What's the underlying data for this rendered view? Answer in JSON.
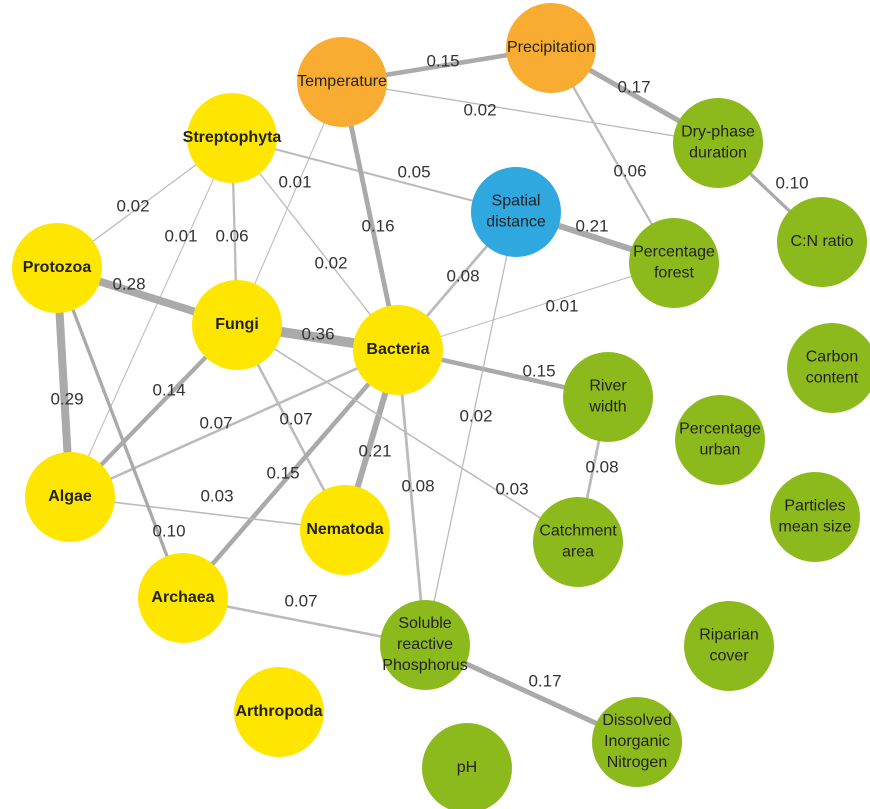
{
  "nodes": [
    {
      "label": [
        "Temperature"
      ],
      "color": "#f8ad32",
      "bold": false
    },
    {
      "label": [
        "Precipitation"
      ],
      "color": "#f8ad32",
      "bold": false
    },
    {
      "label": [
        "Dry-phase",
        "duration"
      ],
      "color": "#8cba1c",
      "bold": false
    },
    {
      "label": [
        "Streptophyta"
      ],
      "color": "#ffe600",
      "bold": true
    },
    {
      "label": [
        "Spatial",
        "distance"
      ],
      "color": "#2fa7df",
      "bold": false
    },
    {
      "label": [
        "C:N ratio"
      ],
      "color": "#8cba1c",
      "bold": false
    },
    {
      "label": [
        "Protozoa"
      ],
      "color": "#ffe600",
      "bold": true
    },
    {
      "label": [
        "Percentage",
        "forest"
      ],
      "color": "#8cba1c",
      "bold": false
    },
    {
      "label": [
        "Fungi"
      ],
      "color": "#ffe600",
      "bold": true
    },
    {
      "label": [
        "Bacteria"
      ],
      "color": "#ffe600",
      "bold": true
    },
    {
      "label": [
        "Carbon",
        "content"
      ],
      "color": "#8cba1c",
      "bold": false
    },
    {
      "label": [
        "River",
        "width"
      ],
      "color": "#8cba1c",
      "bold": false
    },
    {
      "label": [
        "Percentage",
        "urban"
      ],
      "color": "#8cba1c",
      "bold": false
    },
    {
      "label": [
        "Algae"
      ],
      "color": "#ffe600",
      "bold": true
    },
    {
      "label": [
        "Nematoda"
      ],
      "color": "#ffe600",
      "bold": true
    },
    {
      "label": [
        "Particles",
        "mean size"
      ],
      "color": "#8cba1c",
      "bold": false
    },
    {
      "label": [
        "Catchment",
        "area"
      ],
      "color": "#8cba1c",
      "bold": false
    },
    {
      "label": [
        "Archaea"
      ],
      "color": "#ffe600",
      "bold": true
    },
    {
      "label": [
        "Soluble",
        "reactive",
        "Phosphorus"
      ],
      "color": "#8cba1c",
      "bold": false
    },
    {
      "label": [
        "Riparian",
        "cover"
      ],
      "color": "#8cba1c",
      "bold": false
    },
    {
      "label": [
        "Arthropoda"
      ],
      "color": "#ffe600",
      "bold": true
    },
    {
      "label": [
        "Dissolved",
        "Inorganic",
        "Nitrogen"
      ],
      "color": "#8cba1c",
      "bold": false
    },
    {
      "label": [
        "pH"
      ],
      "color": "#8cba1c",
      "bold": false
    }
  ],
  "edges": [
    {
      "source": 0,
      "target": 1,
      "weight": 0.15,
      "label": "0.15"
    },
    {
      "source": 1,
      "target": 2,
      "weight": 0.17,
      "label": "0.17"
    },
    {
      "source": 0,
      "target": 2,
      "weight": 0.02,
      "label": "0.02"
    },
    {
      "source": 2,
      "target": 5,
      "weight": 0.1,
      "label": "0.10"
    },
    {
      "source": 1,
      "target": 7,
      "weight": 0.06,
      "label": "0.06"
    },
    {
      "source": 3,
      "target": 4,
      "weight": 0.05,
      "label": "0.05"
    },
    {
      "source": 4,
      "target": 7,
      "weight": 0.21,
      "label": "0.21"
    },
    {
      "source": 0,
      "target": 9,
      "weight": 0.16,
      "label": "0.16"
    },
    {
      "source": 0,
      "target": 8,
      "weight": 0.01,
      "label": "0.01"
    },
    {
      "source": 3,
      "target": 6,
      "weight": 0.02,
      "label": "0.02"
    },
    {
      "source": 3,
      "target": 13,
      "weight": 0.01,
      "label": "0.01"
    },
    {
      "source": 3,
      "target": 8,
      "weight": 0.06,
      "label": "0.06"
    },
    {
      "source": 3,
      "target": 9,
      "weight": 0.02,
      "label": "0.02"
    },
    {
      "source": 4,
      "target": 9,
      "weight": 0.08,
      "label": "0.08"
    },
    {
      "source": 9,
      "target": 7,
      "weight": 0.01,
      "label": "0.01"
    },
    {
      "source": 6,
      "target": 8,
      "weight": 0.28,
      "label": "0.28"
    },
    {
      "source": 8,
      "target": 9,
      "weight": 0.36,
      "label": "0.36"
    },
    {
      "source": 6,
      "target": 13,
      "weight": 0.29,
      "label": "0.29"
    },
    {
      "source": 8,
      "target": 13,
      "weight": 0.14,
      "label": "0.14"
    },
    {
      "source": 9,
      "target": 13,
      "weight": 0.07,
      "label": "0.07"
    },
    {
      "source": 8,
      "target": 14,
      "weight": 0.07,
      "label": "0.07"
    },
    {
      "source": 9,
      "target": 14,
      "weight": 0.21,
      "label": "0.21"
    },
    {
      "source": 9,
      "target": 17,
      "weight": 0.15,
      "label": "0.15"
    },
    {
      "source": 9,
      "target": 11,
      "weight": 0.15,
      "label": "0.15"
    },
    {
      "source": 4,
      "target": 18,
      "weight": 0.02,
      "label": "0.02"
    },
    {
      "source": 8,
      "target": 16,
      "weight": 0.03,
      "label": "0.03"
    },
    {
      "source": 9,
      "target": 18,
      "weight": 0.08,
      "label": "0.08"
    },
    {
      "source": 11,
      "target": 16,
      "weight": 0.08,
      "label": "0.08"
    },
    {
      "source": 13,
      "target": 14,
      "weight": 0.03,
      "label": "0.03"
    },
    {
      "source": 6,
      "target": 17,
      "weight": 0.1,
      "label": "0.10"
    },
    {
      "source": 17,
      "target": 18,
      "weight": 0.07,
      "label": "0.07"
    },
    {
      "source": 18,
      "target": 21,
      "weight": 0.17,
      "label": "0.17"
    }
  ]
}
